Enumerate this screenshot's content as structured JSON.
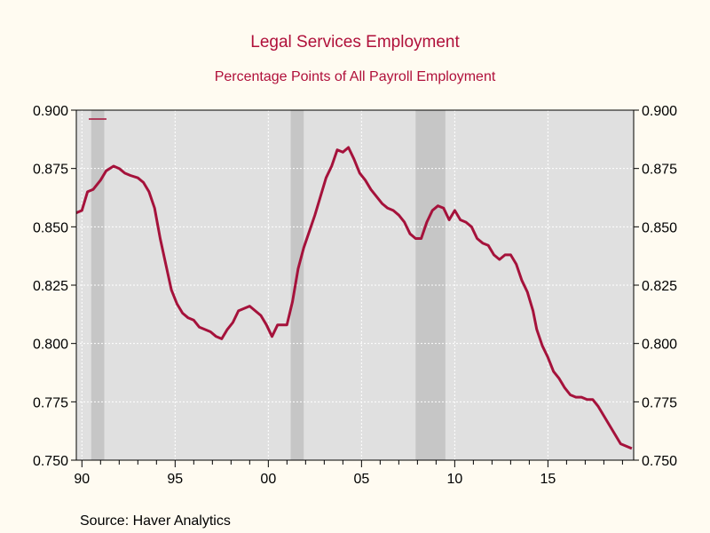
{
  "chart_data": {
    "type": "line",
    "title": "Legal Services Employment",
    "subtitle": "Percentage Points of All Payroll Employment",
    "source": "Source:  Haver Analytics",
    "ylim": [
      0.75,
      0.9
    ],
    "yticks": [
      "0.750",
      "0.775",
      "0.800",
      "0.825",
      "0.850",
      "0.875",
      "0.900"
    ],
    "xlim": [
      1989.7,
      2019.6
    ],
    "xticks": [
      {
        "year": 1990,
        "label": "90"
      },
      {
        "year": 1995,
        "label": "95"
      },
      {
        "year": 2000,
        "label": "00"
      },
      {
        "year": 2005,
        "label": "05"
      },
      {
        "year": 2010,
        "label": "10"
      },
      {
        "year": 2015,
        "label": "15"
      }
    ],
    "grid": true,
    "recessions": [
      [
        1990.5,
        1991.2
      ],
      [
        2001.2,
        2001.9
      ],
      [
        2007.9,
        2009.5
      ]
    ],
    "colors": {
      "line": "#a5123b",
      "plot_bg": "#e0e0e0",
      "recession": "#c6c6c6",
      "page_bg": "#fffbf1"
    },
    "series": [
      {
        "x": [
          1989.7,
          1990.0,
          1990.3,
          1990.6,
          1991.0,
          1991.3,
          1991.7,
          1992.0,
          1992.3,
          1992.6,
          1993.0,
          1993.3,
          1993.6,
          1993.9,
          1994.2,
          1994.5,
          1994.8,
          1995.1,
          1995.4,
          1995.7,
          1996.0,
          1996.3,
          1996.6,
          1996.9,
          1997.2,
          1997.5,
          1997.8,
          1998.1,
          1998.4,
          1998.7,
          1999.0,
          1999.3,
          1999.6,
          1999.9,
          2000.2,
          2000.5,
          2000.7,
          2001.0,
          2001.3,
          2001.6,
          2001.9,
          2002.2,
          2002.5,
          2002.8,
          2003.1,
          2003.4,
          2003.7,
          2004.0,
          2004.3,
          2004.6,
          2004.9,
          2005.2,
          2005.5,
          2005.8,
          2006.1,
          2006.4,
          2006.7,
          2007.0,
          2007.3,
          2007.6,
          2007.9,
          2008.2,
          2008.5,
          2008.8,
          2009.1,
          2009.4,
          2009.7,
          2010.0,
          2010.3,
          2010.6,
          2010.9,
          2011.2,
          2011.5,
          2011.8,
          2012.1,
          2012.4,
          2012.7,
          2013.0,
          2013.3,
          2013.6,
          2013.9,
          2014.2,
          2014.4,
          2014.7,
          2015.0,
          2015.3,
          2015.6,
          2015.9,
          2016.2,
          2016.5,
          2016.8,
          2017.1,
          2017.4,
          2017.7,
          2018.0,
          2018.3,
          2018.6,
          2018.9,
          2019.2,
          2019.5
        ],
        "y": [
          0.856,
          0.857,
          0.865,
          0.866,
          0.87,
          0.874,
          0.876,
          0.875,
          0.873,
          0.872,
          0.871,
          0.869,
          0.865,
          0.858,
          0.845,
          0.834,
          0.823,
          0.817,
          0.813,
          0.811,
          0.81,
          0.807,
          0.806,
          0.805,
          0.803,
          0.802,
          0.806,
          0.809,
          0.814,
          0.815,
          0.816,
          0.814,
          0.812,
          0.808,
          0.803,
          0.808,
          0.808,
          0.808,
          0.818,
          0.832,
          0.841,
          0.848,
          0.855,
          0.863,
          0.871,
          0.876,
          0.883,
          0.882,
          0.884,
          0.879,
          0.873,
          0.87,
          0.866,
          0.863,
          0.86,
          0.858,
          0.857,
          0.855,
          0.852,
          0.847,
          0.845,
          0.845,
          0.852,
          0.857,
          0.859,
          0.858,
          0.853,
          0.857,
          0.853,
          0.852,
          0.85,
          0.845,
          0.843,
          0.842,
          0.838,
          0.836,
          0.838,
          0.838,
          0.834,
          0.827,
          0.822,
          0.814,
          0.806,
          0.799,
          0.794,
          0.788,
          0.785,
          0.781,
          0.778,
          0.777,
          0.777,
          0.776,
          0.776,
          0.773,
          0.769,
          0.765,
          0.761,
          0.757,
          0.756,
          0.755
        ]
      }
    ]
  }
}
